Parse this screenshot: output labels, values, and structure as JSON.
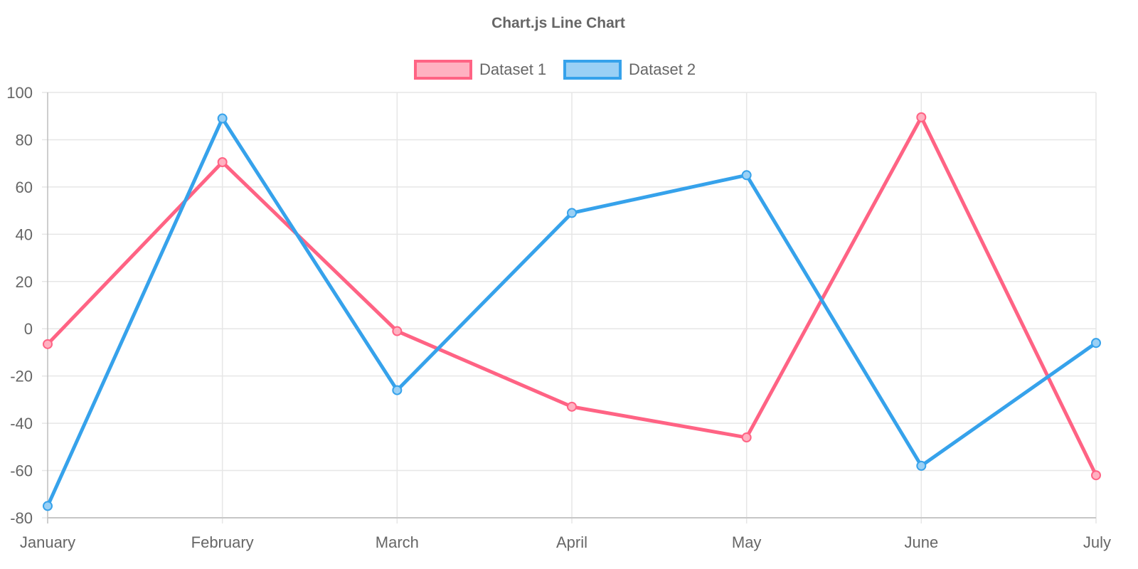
{
  "colors": {
    "text": "#666666",
    "grid": "#e6e6e6",
    "axis": "#bdbdbd",
    "dataset1_line": "#ff6384",
    "dataset1_fill": "#ffb1c1",
    "dataset2_line": "#36a2eb",
    "dataset2_fill": "#9ad0f5",
    "background": "#ffffff"
  },
  "chart_data": {
    "type": "line",
    "title": "Chart.js Line Chart",
    "xlabel": "",
    "ylabel": "",
    "categories": [
      "January",
      "February",
      "March",
      "April",
      "May",
      "June",
      "July"
    ],
    "series": [
      {
        "name": "Dataset 1",
        "values": [
          -6.5,
          70.5,
          -1,
          -33,
          -46,
          89.5,
          -62
        ]
      },
      {
        "name": "Dataset 2",
        "values": [
          -75,
          89,
          -26,
          49,
          65,
          -58,
          -6
        ]
      }
    ],
    "ylim": [
      -80,
      100
    ],
    "yticks": [
      "100",
      "80",
      "60",
      "40",
      "20",
      "0",
      "-20",
      "-40",
      "-60",
      "-80"
    ],
    "grid": true,
    "legend": "top-center"
  }
}
